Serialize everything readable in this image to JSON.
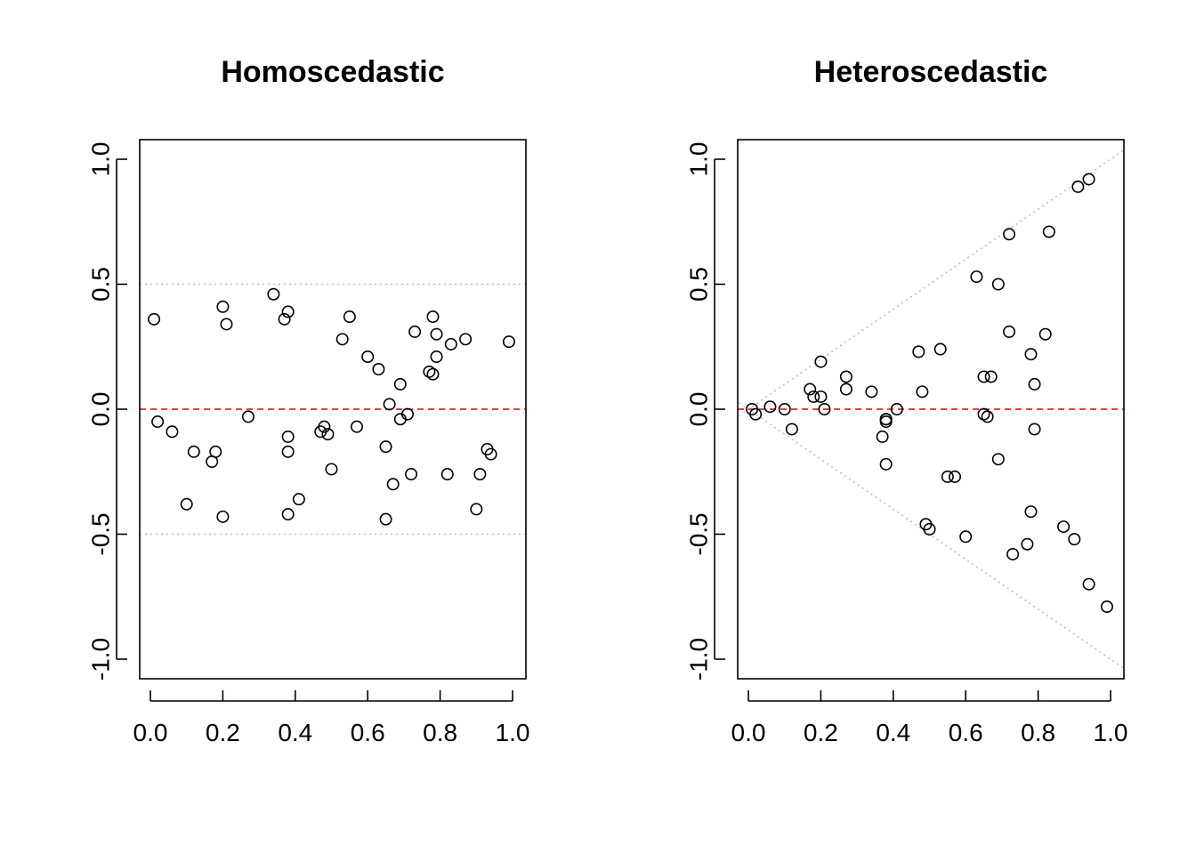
{
  "chart_data": [
    {
      "type": "scatter",
      "title": "Homoscedastic",
      "xlabel": "",
      "ylabel": "",
      "xlim": [
        0,
        1
      ],
      "ylim": [
        -1,
        1
      ],
      "xticks": [
        "0.0",
        "0.2",
        "0.4",
        "0.6",
        "0.8",
        "1.0"
      ],
      "yticks": [
        "-1.0",
        "-0.5",
        "0.0",
        "0.5",
        "1.0"
      ],
      "reference_lines": {
        "zero": 0,
        "bounds": "constant at ±0.5"
      },
      "zero_line_color": "#dd0000",
      "bounds_color": "#bebebe",
      "points": [
        [
          0.01,
          0.36
        ],
        [
          0.02,
          -0.05
        ],
        [
          0.06,
          -0.09
        ],
        [
          0.1,
          -0.38
        ],
        [
          0.12,
          -0.17
        ],
        [
          0.17,
          -0.21
        ],
        [
          0.18,
          -0.17
        ],
        [
          0.2,
          -0.43
        ],
        [
          0.2,
          0.41
        ],
        [
          0.21,
          0.34
        ],
        [
          0.27,
          -0.03
        ],
        [
          0.34,
          0.46
        ],
        [
          0.37,
          0.36
        ],
        [
          0.38,
          0.39
        ],
        [
          0.38,
          -0.11
        ],
        [
          0.38,
          -0.17
        ],
        [
          0.38,
          -0.42
        ],
        [
          0.41,
          -0.36
        ],
        [
          0.47,
          -0.09
        ],
        [
          0.48,
          -0.07
        ],
        [
          0.49,
          -0.1
        ],
        [
          0.5,
          -0.24
        ],
        [
          0.53,
          0.28
        ],
        [
          0.55,
          0.37
        ],
        [
          0.57,
          -0.07
        ],
        [
          0.6,
          0.21
        ],
        [
          0.63,
          0.16
        ],
        [
          0.65,
          -0.44
        ],
        [
          0.65,
          -0.15
        ],
        [
          0.66,
          0.02
        ],
        [
          0.67,
          -0.3
        ],
        [
          0.69,
          -0.04
        ],
        [
          0.69,
          0.1
        ],
        [
          0.71,
          -0.02
        ],
        [
          0.72,
          -0.26
        ],
        [
          0.73,
          0.31
        ],
        [
          0.77,
          0.15
        ],
        [
          0.78,
          0.37
        ],
        [
          0.78,
          0.14
        ],
        [
          0.79,
          0.3
        ],
        [
          0.79,
          0.21
        ],
        [
          0.82,
          -0.26
        ],
        [
          0.83,
          0.26
        ],
        [
          0.87,
          0.28
        ],
        [
          0.9,
          -0.4
        ],
        [
          0.91,
          -0.26
        ],
        [
          0.93,
          -0.16
        ],
        [
          0.94,
          -0.18
        ],
        [
          0.99,
          0.27
        ]
      ]
    },
    {
      "type": "scatter",
      "title": "Heteroscedastic",
      "xlabel": "",
      "ylabel": "",
      "xlim": [
        0,
        1
      ],
      "ylim": [
        -1,
        1
      ],
      "xticks": [
        "0.0",
        "0.2",
        "0.4",
        "0.6",
        "0.8",
        "1.0"
      ],
      "yticks": [
        "-1.0",
        "-0.5",
        "0.0",
        "0.5",
        "1.0"
      ],
      "reference_lines": {
        "zero": 0,
        "bounds": "±x (cone)"
      },
      "zero_line_color": "#dd0000",
      "bounds_color": "#bebebe",
      "points": [
        [
          0.01,
          0.0
        ],
        [
          0.02,
          -0.02
        ],
        [
          0.06,
          0.01
        ],
        [
          0.1,
          0.0
        ],
        [
          0.12,
          -0.08
        ],
        [
          0.17,
          0.08
        ],
        [
          0.18,
          0.05
        ],
        [
          0.2,
          0.05
        ],
        [
          0.2,
          0.19
        ],
        [
          0.21,
          0.0
        ],
        [
          0.27,
          0.13
        ],
        [
          0.27,
          0.08
        ],
        [
          0.34,
          0.07
        ],
        [
          0.37,
          -0.11
        ],
        [
          0.38,
          -0.04
        ],
        [
          0.38,
          -0.05
        ],
        [
          0.38,
          -0.22
        ],
        [
          0.38,
          -0.04
        ],
        [
          0.41,
          0.0
        ],
        [
          0.47,
          0.23
        ],
        [
          0.48,
          0.07
        ],
        [
          0.49,
          -0.46
        ],
        [
          0.5,
          -0.48
        ],
        [
          0.53,
          0.24
        ],
        [
          0.55,
          -0.27
        ],
        [
          0.57,
          -0.27
        ],
        [
          0.6,
          -0.51
        ],
        [
          0.63,
          0.53
        ],
        [
          0.65,
          0.13
        ],
        [
          0.65,
          -0.02
        ],
        [
          0.66,
          -0.03
        ],
        [
          0.67,
          0.13
        ],
        [
          0.69,
          -0.2
        ],
        [
          0.69,
          0.5
        ],
        [
          0.72,
          0.31
        ],
        [
          0.72,
          0.7
        ],
        [
          0.73,
          -0.58
        ],
        [
          0.77,
          -0.54
        ],
        [
          0.78,
          0.22
        ],
        [
          0.78,
          -0.41
        ],
        [
          0.79,
          -0.08
        ],
        [
          0.79,
          0.1
        ],
        [
          0.82,
          0.3
        ],
        [
          0.83,
          0.71
        ],
        [
          0.87,
          -0.47
        ],
        [
          0.9,
          -0.52
        ],
        [
          0.91,
          0.89
        ],
        [
          0.94,
          0.92
        ],
        [
          0.94,
          -0.7
        ],
        [
          0.99,
          -0.79
        ]
      ]
    }
  ]
}
